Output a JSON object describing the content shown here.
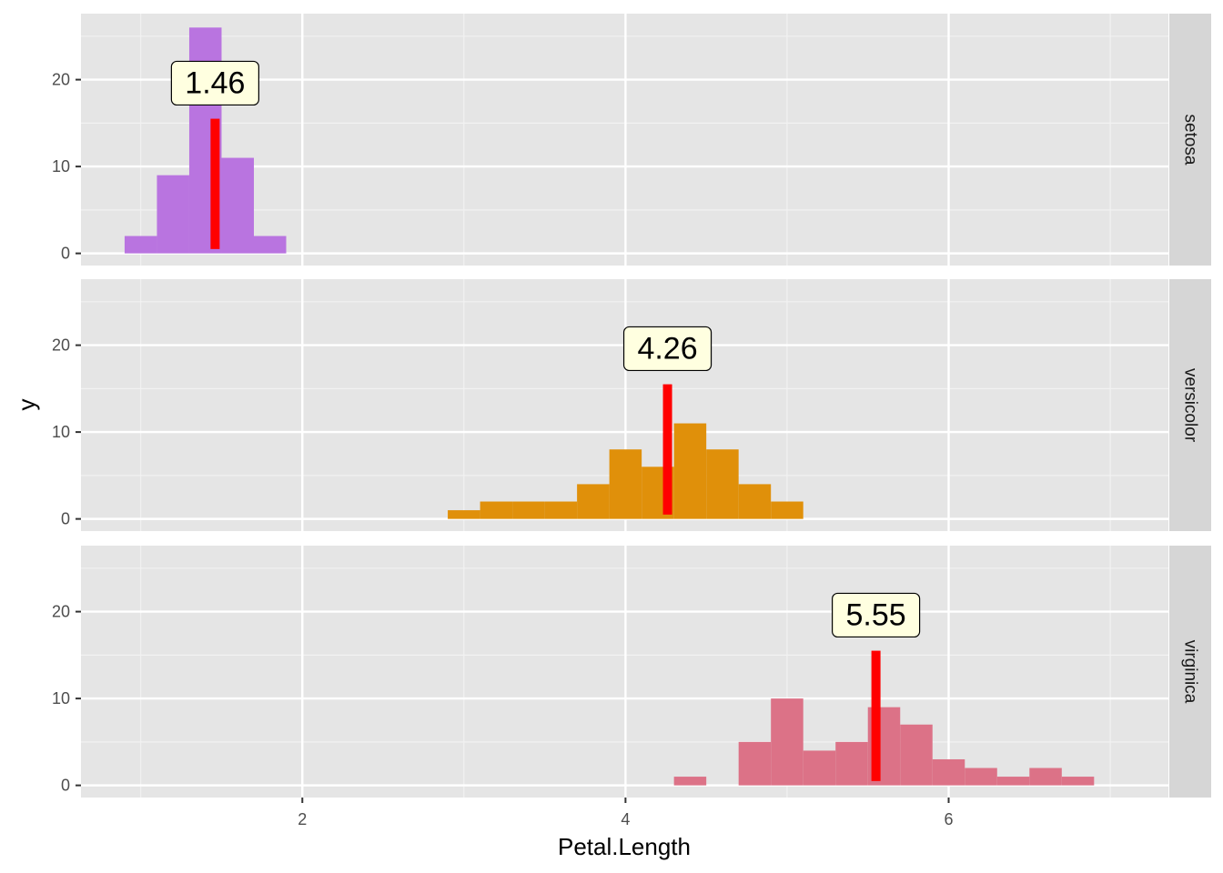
{
  "chart_data": {
    "type": "bar",
    "xlabel": "Petal.Length",
    "ylabel": "y",
    "x_ticks": [
      2,
      4,
      6
    ],
    "y_ticks": [
      0,
      10,
      20
    ],
    "xlim": [
      0.63,
      7.36
    ],
    "ylim": [
      -1.4,
      27.6
    ],
    "bin_width": 0.2,
    "grid": true,
    "mean_marker_color": "#ff0000",
    "label_fill": "#ffffe0",
    "panels": [
      {
        "name": "setosa",
        "color": "#b974e0",
        "mean": 1.46,
        "mean_label": "1.46",
        "bins": [
          {
            "x": 1.0,
            "count": 2
          },
          {
            "x": 1.2,
            "count": 9
          },
          {
            "x": 1.4,
            "count": 26
          },
          {
            "x": 1.6,
            "count": 11
          },
          {
            "x": 1.8,
            "count": 2
          }
        ]
      },
      {
        "name": "versicolor",
        "color": "#e0900a",
        "mean": 4.26,
        "mean_label": "4.26",
        "bins": [
          {
            "x": 3.0,
            "count": 1
          },
          {
            "x": 3.2,
            "count": 2
          },
          {
            "x": 3.4,
            "count": 2
          },
          {
            "x": 3.6,
            "count": 2
          },
          {
            "x": 3.8,
            "count": 4
          },
          {
            "x": 4.0,
            "count": 8
          },
          {
            "x": 4.2,
            "count": 6
          },
          {
            "x": 4.4,
            "count": 11
          },
          {
            "x": 4.6,
            "count": 8
          },
          {
            "x": 4.8,
            "count": 4
          },
          {
            "x": 5.0,
            "count": 2
          }
        ]
      },
      {
        "name": "virginica",
        "color": "#dc7287",
        "mean": 5.55,
        "mean_label": "5.55",
        "bins": [
          {
            "x": 4.4,
            "count": 1
          },
          {
            "x": 4.6,
            "count": 0
          },
          {
            "x": 4.8,
            "count": 5
          },
          {
            "x": 5.0,
            "count": 10
          },
          {
            "x": 5.2,
            "count": 4
          },
          {
            "x": 5.4,
            "count": 5
          },
          {
            "x": 5.6,
            "count": 9
          },
          {
            "x": 5.8,
            "count": 7
          },
          {
            "x": 6.0,
            "count": 3
          },
          {
            "x": 6.2,
            "count": 2
          },
          {
            "x": 6.4,
            "count": 1
          },
          {
            "x": 6.6,
            "count": 2
          },
          {
            "x": 6.8,
            "count": 1
          }
        ]
      }
    ]
  }
}
